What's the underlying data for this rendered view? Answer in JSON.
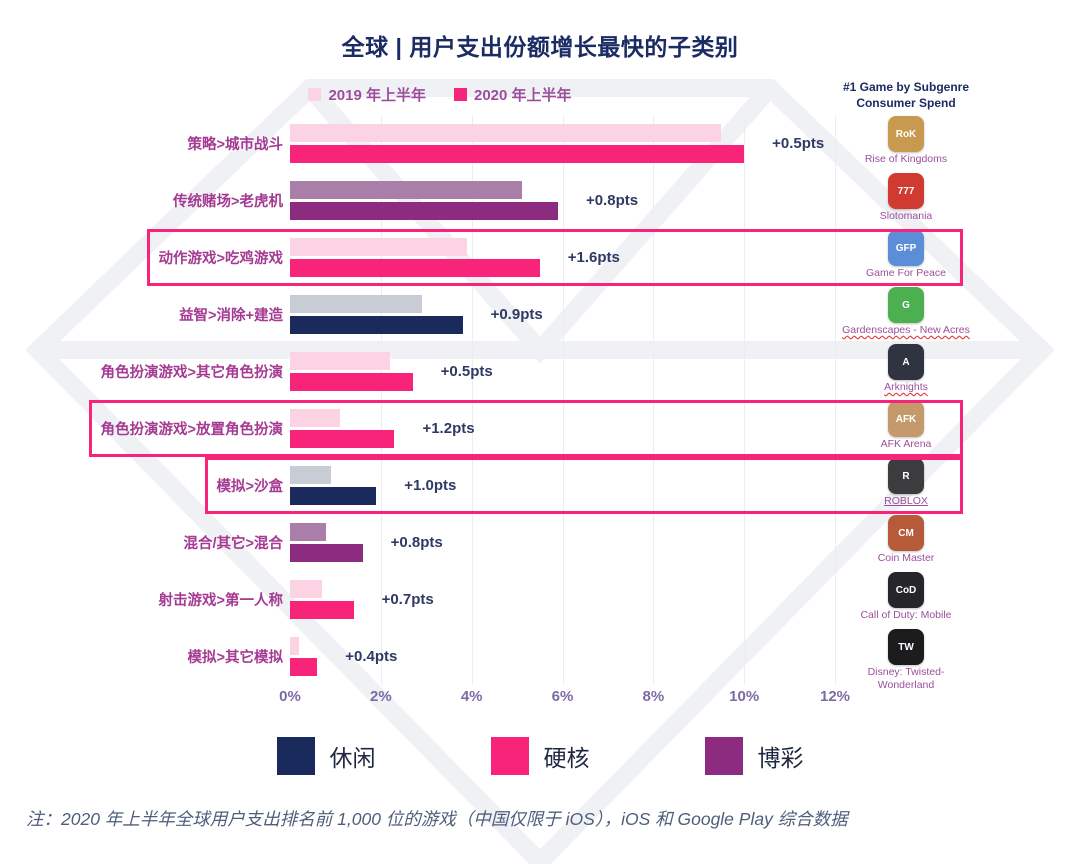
{
  "title": "全球 | 用户支出份额增长最快的子类别",
  "top_legend": [
    {
      "label": "2019 年上半年",
      "color": "#FBD3E2"
    },
    {
      "label": "2020 年上半年",
      "color": "#F8247A"
    }
  ],
  "right_panel": {
    "header": "#1 Game by Subgenre Consumer Spend"
  },
  "bottom_legend": [
    {
      "key": "casual",
      "label": "休闲",
      "color": "#1A2A5C"
    },
    {
      "key": "hardcore",
      "label": "硬核",
      "color": "#F8247A"
    },
    {
      "key": "casino",
      "label": "博彩",
      "color": "#8C2B80"
    }
  ],
  "footnote": "注：2020 年上半年全球用户支出排名前 1,000 位的游戏（中国仅限于 iOS），iOS 和 Google Play 综合数据",
  "chart_data": {
    "type": "bar",
    "orientation": "horizontal",
    "title": "全球 | 用户支出份额增长最快的子类别",
    "series_names": [
      "2019 年上半年",
      "2020 年上半年"
    ],
    "x_ticks": [
      "0%",
      "2%",
      "4%",
      "6%",
      "8%",
      "10%",
      "12%"
    ],
    "xlim": [
      0,
      12
    ],
    "grid": true,
    "legend_position": "top",
    "category_colors": {
      "casual": {
        "light": "#C8CCD4",
        "dark": "#1A2A5C"
      },
      "hardcore": {
        "light": "#FBD3E2",
        "dark": "#F8247A"
      },
      "casino": {
        "light": "#A97EA8",
        "dark": "#8C2B80"
      }
    },
    "rows": [
      {
        "label": "策略>城市战斗",
        "v2019": 9.5,
        "v2020": 10.0,
        "delta": "+0.5pts",
        "category": "hardcore",
        "game": "Rise of Kingdoms",
        "icon_text": "RoK",
        "icon_bg": "#C79A4F",
        "name_underline": null,
        "highlight": false
      },
      {
        "label": "传统赌场>老虎机",
        "v2019": 5.1,
        "v2020": 5.9,
        "delta": "+0.8pts",
        "category": "casino",
        "game": "Slotomania",
        "icon_text": "777",
        "icon_bg": "#D03A30",
        "name_underline": null,
        "highlight": false
      },
      {
        "label": "动作游戏>吃鸡游戏",
        "v2019": 3.9,
        "v2020": 5.5,
        "delta": "+1.6pts",
        "category": "hardcore",
        "game": "Game For Peace",
        "icon_text": "GFP",
        "icon_bg": "#5B8ED6",
        "name_underline": null,
        "highlight": true
      },
      {
        "label": "益智>消除+建造",
        "v2019": 2.9,
        "v2020": 3.8,
        "delta": "+0.9pts",
        "category": "casual",
        "game": "Gardenscapes - New Acres",
        "icon_text": "G",
        "icon_bg": "#4CAF50",
        "name_underline": "wavy",
        "highlight": false
      },
      {
        "label": "角色扮演游戏>其它角色扮演",
        "v2019": 2.2,
        "v2020": 2.7,
        "delta": "+0.5pts",
        "category": "hardcore",
        "game": "Arknights",
        "icon_text": "A",
        "icon_bg": "#2F3440",
        "name_underline": "wavy",
        "highlight": false
      },
      {
        "label": "角色扮演游戏>放置角色扮演",
        "v2019": 1.1,
        "v2020": 2.3,
        "delta": "+1.2pts",
        "category": "hardcore",
        "game": "AFK Arena",
        "icon_text": "AFK",
        "icon_bg": "#C49A6C",
        "name_underline": null,
        "highlight": true
      },
      {
        "label": "模拟>沙盒",
        "v2019": 0.9,
        "v2020": 1.9,
        "delta": "+1.0pts",
        "category": "casual",
        "game": "ROBLOX",
        "icon_text": "R",
        "icon_bg": "#3C3C3E",
        "name_underline": "solid",
        "highlight": true
      },
      {
        "label": "混合/其它>混合",
        "v2019": 0.8,
        "v2020": 1.6,
        "delta": "+0.8pts",
        "category": "casino",
        "game": "Coin Master",
        "icon_text": "CM",
        "icon_bg": "#B65A3A",
        "name_underline": null,
        "highlight": false
      },
      {
        "label": "射击游戏>第一人称",
        "v2019": 0.7,
        "v2020": 1.4,
        "delta": "+0.7pts",
        "category": "hardcore",
        "game": "Call of Duty: Mobile",
        "icon_text": "CoD",
        "icon_bg": "#26262A",
        "name_underline": null,
        "highlight": false
      },
      {
        "label": "模拟>其它模拟",
        "v2019": 0.2,
        "v2020": 0.6,
        "delta": "+0.4pts",
        "category": "hardcore",
        "game": "Disney: Twisted-Wonderland",
        "icon_text": "TW",
        "icon_bg": "#1C1C1E",
        "name_underline": null,
        "highlight": false
      }
    ]
  }
}
